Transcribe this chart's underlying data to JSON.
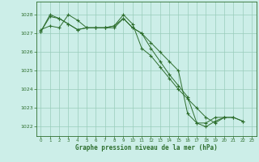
{
  "background_color": "#cceee8",
  "grid_color": "#99ccbb",
  "line_color": "#2d6e2d",
  "xlabel": "Graphe pression niveau de la mer (hPa)",
  "xlabel_color": "#2d6e2d",
  "ylim": [
    1021.5,
    1028.7
  ],
  "xlim": [
    -0.5,
    23.5
  ],
  "yticks": [
    1022,
    1023,
    1024,
    1025,
    1026,
    1027,
    1028
  ],
  "xticks": [
    0,
    1,
    2,
    3,
    4,
    5,
    6,
    7,
    8,
    9,
    10,
    11,
    12,
    13,
    14,
    15,
    16,
    17,
    18,
    19,
    20,
    21,
    22,
    23
  ],
  "series": [
    [
      1027.2,
      1027.4,
      1027.3,
      1028.0,
      1027.7,
      1027.3,
      1027.3,
      1027.3,
      1027.3,
      1027.8,
      1027.3,
      1027.0,
      1026.5,
      1026.0,
      1025.5,
      1025.0,
      1022.7,
      1022.2,
      1022.0,
      1022.3,
      1022.5,
      1022.5,
      1022.3,
      null
    ],
    [
      1027.1,
      1028.0,
      1027.8,
      1027.5,
      1027.2,
      1027.3,
      1027.3,
      1027.3,
      1027.4,
      1028.0,
      1027.5,
      1026.2,
      1025.8,
      1025.2,
      1024.6,
      1024.0,
      1023.5,
      1023.0,
      1022.5,
      1022.2,
      1022.5,
      null,
      null,
      null
    ],
    [
      1027.1,
      1027.9,
      1027.8,
      1027.5,
      1027.2,
      1027.3,
      1027.3,
      1027.3,
      1027.4,
      1027.8,
      1027.3,
      1027.0,
      1026.2,
      1025.5,
      1024.8,
      1024.2,
      1023.6,
      1022.2,
      1022.2,
      1022.5,
      1022.5,
      1022.5,
      1022.3,
      null
    ]
  ]
}
